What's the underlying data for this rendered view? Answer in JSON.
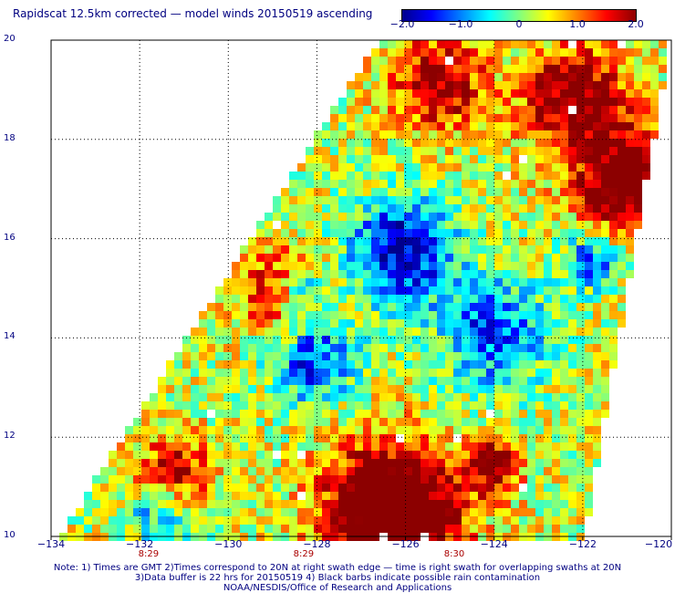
{
  "title": "Rapidscat 12.5km corrected — model winds 20150519 ascending",
  "colorbar": {
    "ticks": [
      "−2.0",
      "−1.0",
      "0",
      "1.0",
      "2.0"
    ],
    "tick_values": [
      -2.0,
      -1.0,
      0,
      1.0,
      2.0
    ],
    "colors": [
      "#00008c",
      "#0000ff",
      "#0080ff",
      "#00ffff",
      "#80ff80",
      "#ffff00",
      "#ff8000",
      "#ff0000",
      "#8c0000"
    ]
  },
  "axes": {
    "y_labels": [
      "20",
      "18",
      "16",
      "14",
      "12",
      "10"
    ],
    "y_values": [
      20,
      18,
      16,
      14,
      12,
      10
    ],
    "x_labels": [
      "−134",
      "−132",
      "−130",
      "−128",
      "−126",
      "−124",
      "−122",
      "−120"
    ],
    "x_values": [
      -134,
      -132,
      -130,
      -128,
      -126,
      -124,
      -122,
      -120
    ]
  },
  "pass_labels": [
    {
      "text": "8:29",
      "lon": -131.8
    },
    {
      "text": "8:29",
      "lon": -128.3
    },
    {
      "text": "8:30",
      "lon": -124.9
    }
  ],
  "notes": [
    "Note: 1) Times are GMT 2)Times correspond to 20N at right swath edge — time is right swath for overlapping swaths at 20N",
    "3)Data buffer is 22 hrs for 20150519 4) Black barbs indicate possible rain contamination",
    "NOAA/NESDIS/Office of Research and Applications"
  ]
}
